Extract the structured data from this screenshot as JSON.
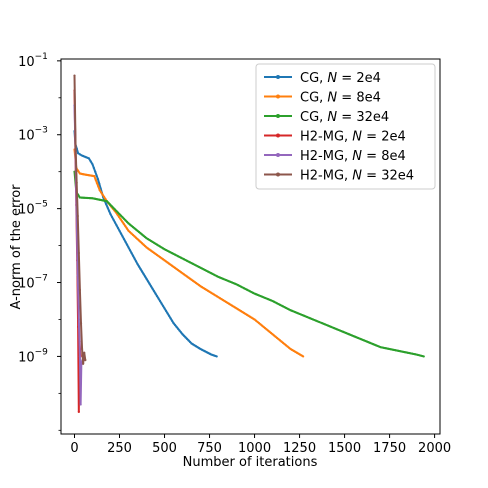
{
  "chart_data": {
    "type": "line",
    "xlabel": "Number of iterations",
    "ylabel": "A-norm of the error",
    "xlim": [
      -75,
      2030
    ],
    "ylim_log10": [
      -11.1,
      -0.95
    ],
    "y_scale": "log",
    "x_ticks": [
      0,
      250,
      500,
      750,
      1000,
      1250,
      1500,
      1750,
      2000
    ],
    "y_ticks": [
      {
        "exp": -1,
        "base": "10",
        "sup": "−1"
      },
      {
        "exp": -3,
        "base": "10",
        "sup": "−3"
      },
      {
        "exp": -5,
        "base": "10",
        "sup": "−5"
      },
      {
        "exp": -7,
        "base": "10",
        "sup": "−7"
      },
      {
        "exp": -9,
        "base": "10",
        "sup": "−9"
      }
    ],
    "legend_position": "top-right",
    "series": [
      {
        "name": "CG, N = 2e4",
        "label_prefix": "CG, ",
        "label_n": "2e4",
        "color": "#1f77b4",
        "points": [
          [
            0,
            -2.9
          ],
          [
            5,
            -3.25
          ],
          [
            20,
            -3.5
          ],
          [
            40,
            -3.56
          ],
          [
            80,
            -3.64
          ],
          [
            100,
            -3.8
          ],
          [
            130,
            -4.2
          ],
          [
            160,
            -4.7
          ],
          [
            200,
            -5.15
          ],
          [
            250,
            -5.6
          ],
          [
            300,
            -6.05
          ],
          [
            350,
            -6.5
          ],
          [
            400,
            -6.9
          ],
          [
            450,
            -7.3
          ],
          [
            500,
            -7.7
          ],
          [
            550,
            -8.1
          ],
          [
            600,
            -8.4
          ],
          [
            650,
            -8.65
          ],
          [
            700,
            -8.8
          ],
          [
            760,
            -8.95
          ],
          [
            790,
            -9.0
          ]
        ]
      },
      {
        "name": "CG, N = 8e4",
        "label_prefix": "CG, ",
        "label_n": "8e4",
        "color": "#ff7f0e",
        "points": [
          [
            0,
            -3.4
          ],
          [
            10,
            -3.9
          ],
          [
            30,
            -4.05
          ],
          [
            60,
            -4.08
          ],
          [
            110,
            -4.12
          ],
          [
            140,
            -4.5
          ],
          [
            180,
            -4.8
          ],
          [
            230,
            -5.1
          ],
          [
            300,
            -5.6
          ],
          [
            400,
            -6.05
          ],
          [
            500,
            -6.4
          ],
          [
            600,
            -6.75
          ],
          [
            700,
            -7.1
          ],
          [
            800,
            -7.4
          ],
          [
            900,
            -7.7
          ],
          [
            1000,
            -8.0
          ],
          [
            1100,
            -8.4
          ],
          [
            1200,
            -8.8
          ],
          [
            1270,
            -9.0
          ]
        ]
      },
      {
        "name": "CG, N = 32e4",
        "label_prefix": "CG, ",
        "label_n": "32e4",
        "color": "#2ca02c",
        "points": [
          [
            0,
            -4.0
          ],
          [
            10,
            -4.55
          ],
          [
            30,
            -4.7
          ],
          [
            100,
            -4.72
          ],
          [
            180,
            -4.8
          ],
          [
            250,
            -5.15
          ],
          [
            300,
            -5.4
          ],
          [
            400,
            -5.8
          ],
          [
            500,
            -6.1
          ],
          [
            600,
            -6.35
          ],
          [
            700,
            -6.6
          ],
          [
            800,
            -6.85
          ],
          [
            900,
            -7.05
          ],
          [
            1000,
            -7.3
          ],
          [
            1100,
            -7.5
          ],
          [
            1200,
            -7.75
          ],
          [
            1300,
            -7.95
          ],
          [
            1400,
            -8.15
          ],
          [
            1500,
            -8.35
          ],
          [
            1600,
            -8.55
          ],
          [
            1700,
            -8.75
          ],
          [
            1800,
            -8.85
          ],
          [
            1900,
            -8.95
          ],
          [
            1940,
            -9.0
          ]
        ]
      },
      {
        "name": "H2-MG, N = 2e4",
        "label_prefix": "H2-MG, ",
        "label_n": "2e4",
        "color": "#d62728",
        "points": [
          [
            0,
            -1.8
          ],
          [
            5,
            -3.4
          ],
          [
            10,
            -4.9
          ],
          [
            15,
            -6.4
          ],
          [
            20,
            -8.2
          ],
          [
            24,
            -10.5
          ],
          [
            28,
            -8.6
          ],
          [
            33,
            -9.0
          ]
        ]
      },
      {
        "name": "H2-MG, N = 8e4",
        "label_prefix": "H2-MG, ",
        "label_n": "8e4",
        "color": "#9467bd",
        "points": [
          [
            0,
            -2.2
          ],
          [
            6,
            -3.5
          ],
          [
            12,
            -5.2
          ],
          [
            18,
            -6.8
          ],
          [
            24,
            -8.0
          ],
          [
            30,
            -9.0
          ],
          [
            34,
            -10.3
          ],
          [
            38,
            -9.2
          ],
          [
            44,
            -9.1
          ]
        ]
      },
      {
        "name": "H2-MG, N = 32e4",
        "label_prefix": "H2-MG, ",
        "label_n": "32e4",
        "color": "#8c564b",
        "points": [
          [
            0,
            -1.4
          ],
          [
            6,
            -3.3
          ],
          [
            12,
            -4.3
          ],
          [
            18,
            -5.2
          ],
          [
            24,
            -6.2
          ],
          [
            30,
            -7.2
          ],
          [
            36,
            -8.1
          ],
          [
            42,
            -8.8
          ],
          [
            48,
            -9.2
          ],
          [
            54,
            -8.9
          ],
          [
            60,
            -9.1
          ]
        ]
      }
    ]
  }
}
